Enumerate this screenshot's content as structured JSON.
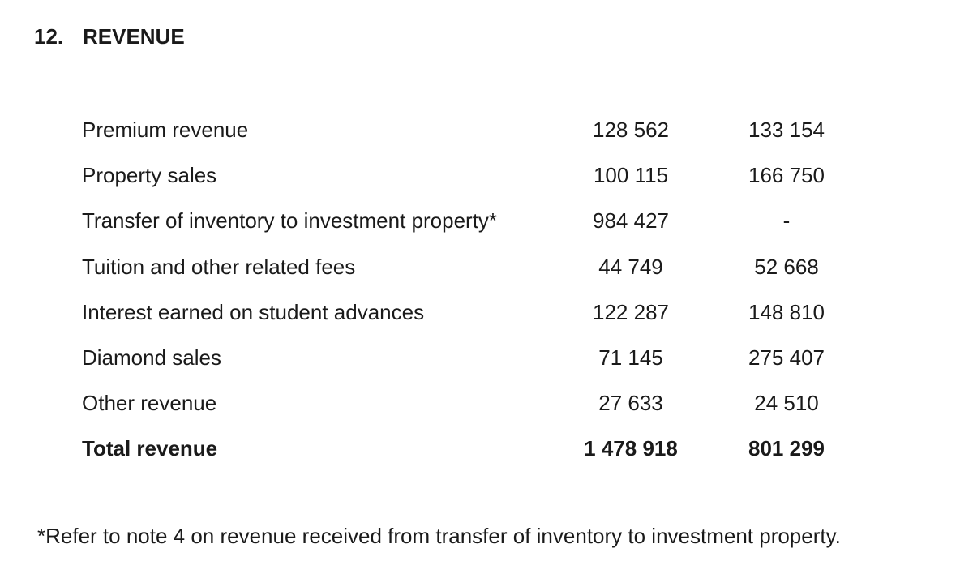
{
  "heading": {
    "number": "12.",
    "title": "REVENUE"
  },
  "rows": [
    {
      "label": "Premium revenue",
      "current": "128 562",
      "prior": "133 154"
    },
    {
      "label": "Property sales",
      "current": "100 115",
      "prior": "166 750"
    },
    {
      "label": "Transfer of inventory to investment property*",
      "current": "984 427",
      "prior": "-"
    },
    {
      "label": "Tuition and other related fees",
      "current": "44 749",
      "prior": "52 668"
    },
    {
      "label": "Interest earned on student advances",
      "current": "122 287",
      "prior": "148 810"
    },
    {
      "label": "Diamond sales",
      "current": "71 145",
      "prior": "275 407"
    },
    {
      "label": "Other revenue",
      "current": "27 633",
      "prior": "24 510"
    }
  ],
  "total": {
    "label": "Total revenue",
    "current": "1 478 918",
    "prior": "801 299"
  },
  "footnote": "*Refer to note 4 on revenue received from transfer of inventory to investment property."
}
